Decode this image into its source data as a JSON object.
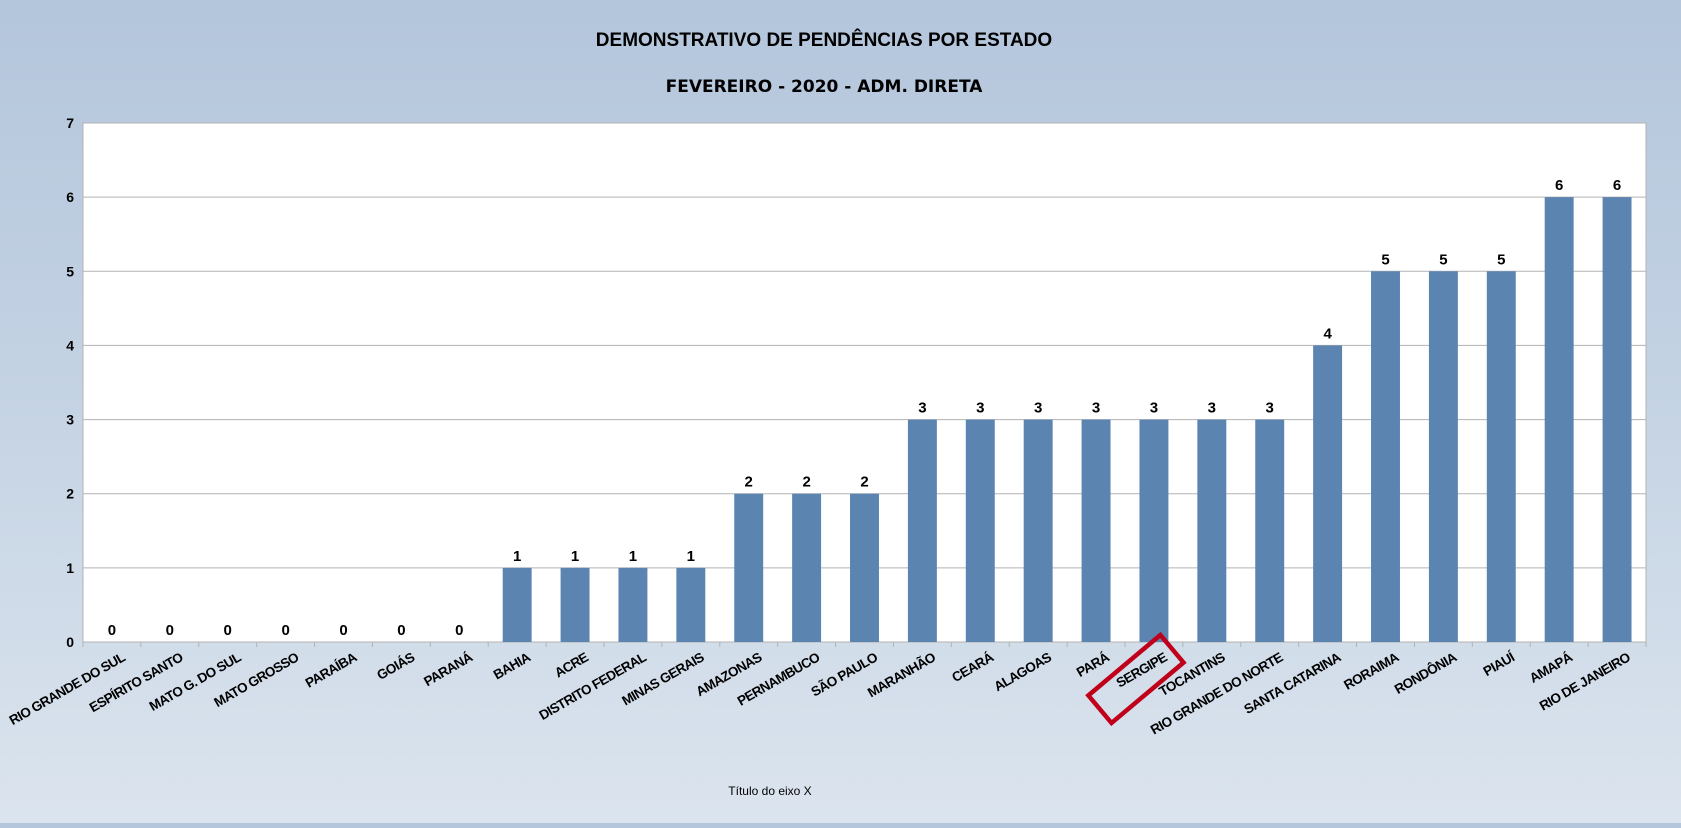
{
  "chart_data": {
    "type": "bar",
    "title": "DEMONSTRATIVO DE PENDÊNCIAS POR ESTADO",
    "subtitle": "FEVEREIRO - 2020 - ADM. DIRETA",
    "xlabel": "Título do eixo X",
    "ylabel": "",
    "ylim": [
      0,
      7
    ],
    "yticks": [
      0,
      1,
      2,
      3,
      4,
      5,
      6,
      7
    ],
    "grid": true,
    "bar_color": "#5b84b1",
    "highlight_color": "#c0001a",
    "highlighted_category": "SERGIPE",
    "categories": [
      "RIO GRANDE DO SUL",
      "ESPÍRITO SANTO",
      "MATO G. DO SUL",
      "MATO GROSSO",
      "PARAÍBA",
      "GOIÁS",
      "PARANÁ",
      "BAHIA",
      "ACRE",
      "DISTRITO FEDERAL",
      "MINAS GERAIS",
      "AMAZONAS",
      "PERNAMBUCO",
      "SÃO PAULO",
      "MARANHÃO",
      "CEARÁ",
      "ALAGOAS",
      "PARÁ",
      "SERGIPE",
      "TOCANTINS",
      "RIO GRANDE DO NORTE",
      "SANTA CATARINA",
      "RORAIMA",
      "RONDÔNIA",
      "PIAUÍ",
      "AMAPÁ",
      "RIO DE JANEIRO"
    ],
    "values": [
      0,
      0,
      0,
      0,
      0,
      0,
      0,
      1,
      1,
      1,
      1,
      2,
      2,
      2,
      3,
      3,
      3,
      3,
      3,
      3,
      3,
      4,
      5,
      5,
      5,
      6,
      6
    ]
  }
}
